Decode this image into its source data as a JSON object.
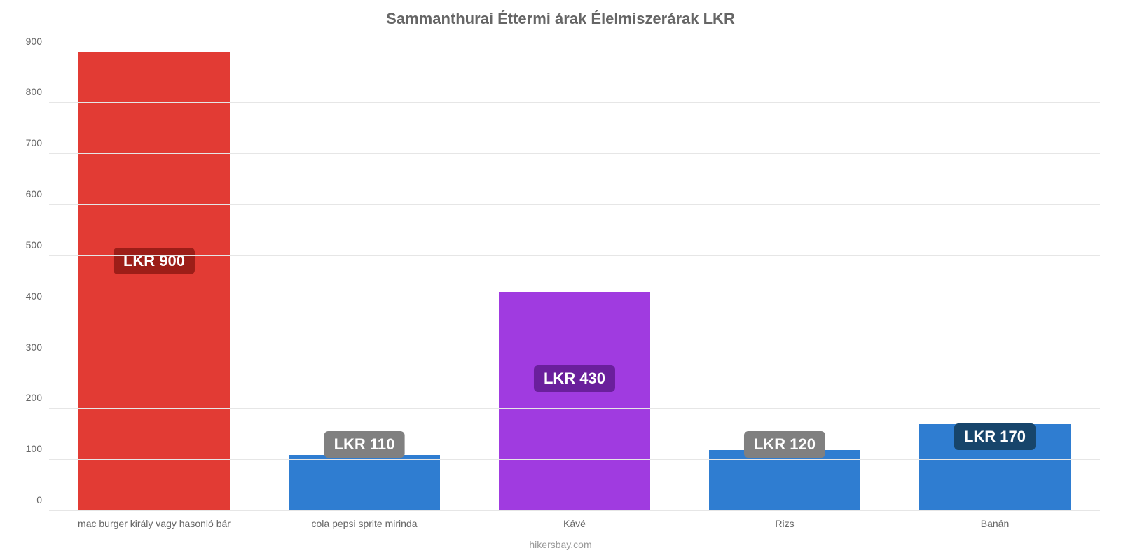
{
  "chart": {
    "type": "bar",
    "title": "Sammanthurai Éttermi árak Élelmiszerárak LKR",
    "title_fontsize": 22,
    "title_color": "#666666",
    "background_color": "#ffffff",
    "grid_color": "#e6e6e6",
    "axis_line_color": "#cfcfcf",
    "tick_label_color": "#666666",
    "tick_fontsize": 14,
    "xlabel_fontsize": 14,
    "bar_width_pct": 72,
    "ylim": [
      0,
      920
    ],
    "yticks": [
      0,
      100,
      200,
      300,
      400,
      500,
      600,
      700,
      800,
      900
    ],
    "categories": [
      "mac burger király vagy hasonló bár",
      "cola pepsi sprite mirinda",
      "Kávé",
      "Rizs",
      "Banán"
    ],
    "values": [
      900,
      110,
      430,
      120,
      170
    ],
    "value_labels": [
      "LKR 900",
      "LKR 110",
      "LKR 430",
      "LKR 120",
      "LKR 170"
    ],
    "bar_colors": [
      "#e23b34",
      "#2f7dd1",
      "#a03be0",
      "#2f7dd1",
      "#2f7dd1"
    ],
    "badge_colors": [
      "#9c1e18",
      "#808080",
      "#6a1f9c",
      "#808080",
      "#17456b"
    ],
    "badge_fontsize": 22,
    "badge_y_value": [
      490,
      130,
      260,
      130,
      145
    ],
    "source": "hikersbay.com",
    "source_color": "#9a9a9a"
  }
}
